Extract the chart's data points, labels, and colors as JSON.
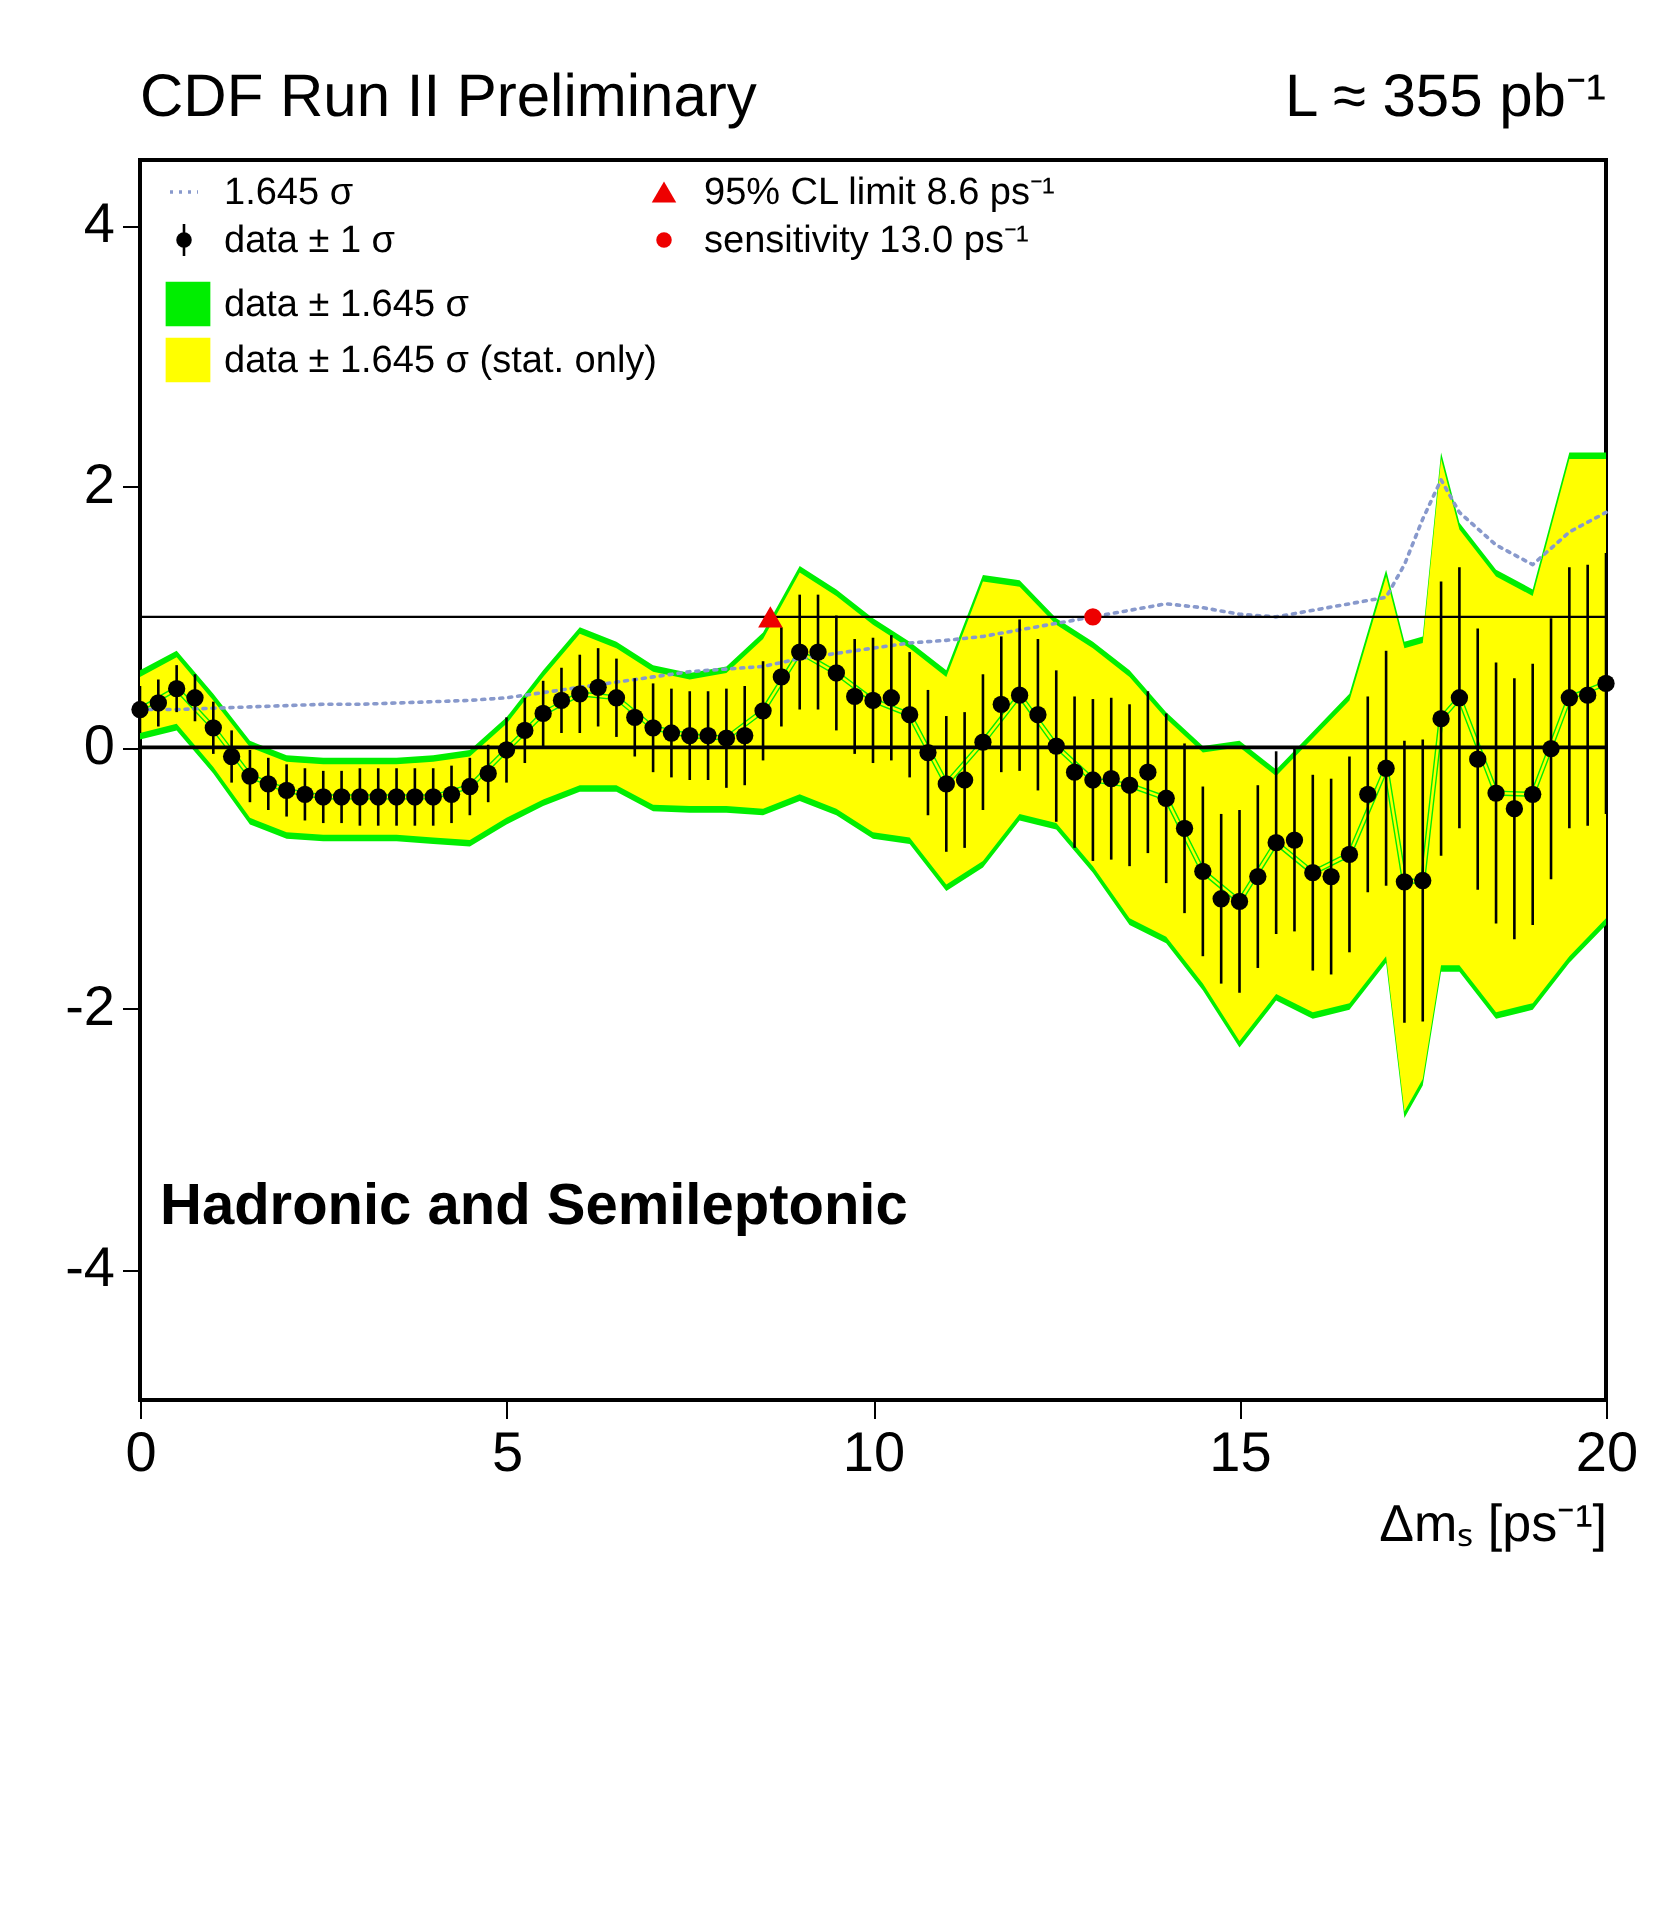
{
  "chart_data": {
    "type": "scatter",
    "title": "CDF Run II Preliminary",
    "subtitle": "L ≈ 355 pb⁻¹",
    "xlabel": "Δmₛ [ps⁻¹]",
    "annotations": [
      "Hadronic and Semileptonic"
    ],
    "xlim": [
      0,
      20
    ],
    "xticks": [
      0,
      5,
      10,
      15,
      20
    ],
    "ylim": [
      -5,
      4.5
    ],
    "yticks": [
      -4,
      -2,
      0,
      2,
      4
    ],
    "legend": "top left",
    "x": [
      0,
      0.25,
      0.5,
      0.75,
      1,
      1.25,
      1.5,
      1.75,
      2,
      2.25,
      2.5,
      2.75,
      3,
      3.25,
      3.5,
      3.75,
      4,
      4.25,
      4.5,
      4.75,
      5,
      5.25,
      5.5,
      5.75,
      6,
      6.25,
      6.5,
      6.75,
      7,
      7.25,
      7.5,
      7.75,
      8,
      8.25,
      8.5,
      8.75,
      9,
      9.25,
      9.5,
      9.75,
      10,
      10.25,
      10.5,
      10.75,
      11,
      11.25,
      11.5,
      11.75,
      12,
      12.25,
      12.5,
      12.75,
      13,
      13.25,
      13.5,
      13.75,
      14,
      14.25,
      14.5,
      14.75,
      15,
      15.25,
      15.5,
      15.75,
      16,
      16.25,
      16.5,
      16.75,
      17,
      17.25,
      17.5,
      17.75,
      18,
      18.25,
      18.5,
      18.75,
      19,
      19.25,
      19.5,
      19.75,
      20
    ],
    "ref_lines": [
      {
        "axis": "y",
        "value": 1,
        "color": "#000000"
      },
      {
        "axis": "y",
        "value": 0,
        "color": "#000000"
      }
    ],
    "series": [
      {
        "name": "data ± 1.645 σ",
        "type": "line",
        "color": "#00ee00",
        "values": [
          0.29,
          0.45,
          0.15,
          -0.22,
          -0.33,
          -0.38,
          -0.38,
          -0.38,
          -0.38,
          -0.3,
          -0.02,
          0.26,
          0.41,
          0.38,
          0.15,
          0.09,
          0.07,
          0.28,
          0.73,
          0.57,
          0.36,
          0.25,
          -0.28,
          0.04,
          0.4,
          0.01,
          -0.25,
          -0.29,
          -0.39,
          -0.95,
          -1.18,
          -0.73,
          -0.96,
          -0.82,
          -0.16,
          -1.03,
          -1.02,
          0.22,
          0.38,
          -0.35,
          -0.36,
          0.38,
          0.49
        ],
        "x": [
          0,
          0.5,
          1,
          1.5,
          2,
          2.5,
          3,
          3.5,
          4,
          4.5,
          5,
          5.5,
          6,
          6.5,
          7,
          7.5,
          8,
          8.5,
          9,
          9.5,
          10,
          10.5,
          11,
          11.5,
          12,
          12.5,
          13,
          13.5,
          14,
          14.5,
          15,
          15.5,
          16,
          16.5,
          17,
          17.25,
          17.5,
          17.75,
          18,
          18.5,
          19,
          19.5,
          20
        ],
        "lower": [
          0.06,
          0.13,
          -0.2,
          -0.59,
          -0.7,
          -0.72,
          -0.72,
          -0.72,
          -0.74,
          -0.76,
          -0.59,
          -0.45,
          -0.34,
          -0.34,
          -0.49,
          -0.5,
          -0.5,
          -0.52,
          -0.41,
          -0.52,
          -0.7,
          -0.74,
          -1.1,
          -0.92,
          -0.56,
          -0.63,
          -0.96,
          -1.36,
          -1.5,
          -1.86,
          -2.3,
          -1.94,
          -2.08,
          -2.01,
          -1.65,
          -2.84,
          -2.59,
          -1.72,
          -1.72,
          -2.08,
          -2.01,
          -1.65,
          -1.36
        ],
        "upper": [
          0.59,
          0.74,
          0.41,
          0.05,
          -0.06,
          -0.08,
          -0.08,
          -0.08,
          -0.06,
          -0.02,
          0.23,
          0.59,
          0.92,
          0.81,
          0.63,
          0.57,
          0.62,
          0.88,
          1.39,
          1.21,
          0.99,
          0.81,
          0.59,
          1.32,
          1.28,
          0.99,
          0.81,
          0.59,
          0.27,
          0.01,
          0.05,
          -0.17,
          0.12,
          0.41,
          1.36,
          0.81,
          0.85,
          2.26,
          1.72,
          1.36,
          1.21,
          2.26,
          2.26
        ]
      },
      {
        "name": "data ± 1.645 σ (stat. only)",
        "type": "line",
        "color": "#ffff00",
        "values": [
          0.29,
          0.45,
          0.15,
          -0.22,
          -0.33,
          -0.38,
          -0.38,
          -0.38,
          -0.38,
          -0.3,
          -0.02,
          0.26,
          0.41,
          0.38,
          0.15,
          0.09,
          0.07,
          0.28,
          0.73,
          0.57,
          0.36,
          0.25,
          -0.28,
          0.04,
          0.4,
          0.01,
          -0.25,
          -0.29,
          -0.39,
          -0.95,
          -1.18,
          -0.73,
          -0.96,
          -0.82,
          -0.16,
          -1.03,
          -1.02,
          0.22,
          0.38,
          -0.35,
          -0.36,
          0.38,
          0.49
        ],
        "x": [
          0,
          0.5,
          1,
          1.5,
          2,
          2.5,
          3,
          3.5,
          4,
          4.5,
          5,
          5.5,
          6,
          6.5,
          7,
          7.5,
          8,
          8.5,
          9,
          9.5,
          10,
          10.5,
          11,
          11.5,
          12,
          12.5,
          13,
          13.5,
          14,
          14.5,
          15,
          15.5,
          16,
          16.5,
          17,
          17.25,
          17.5,
          17.75,
          18,
          18.5,
          19,
          19.5,
          20
        ],
        "lower": [
          0.11,
          0.18,
          -0.15,
          -0.54,
          -0.65,
          -0.67,
          -0.67,
          -0.67,
          -0.69,
          -0.71,
          -0.54,
          -0.4,
          -0.29,
          -0.29,
          -0.44,
          -0.45,
          -0.45,
          -0.47,
          -0.36,
          -0.47,
          -0.65,
          -0.69,
          -1.05,
          -0.87,
          -0.51,
          -0.58,
          -0.91,
          -1.31,
          -1.45,
          -1.81,
          -2.25,
          -1.89,
          -2.03,
          -1.96,
          -1.6,
          -2.79,
          -2.54,
          -1.67,
          -1.67,
          -2.03,
          -1.96,
          -1.6,
          -1.31
        ],
        "upper": [
          0.54,
          0.69,
          0.36,
          0,
          -0.11,
          -0.13,
          -0.13,
          -0.13,
          -0.11,
          -0.07,
          0.18,
          0.54,
          0.87,
          0.76,
          0.58,
          0.52,
          0.57,
          0.83,
          1.34,
          1.16,
          0.94,
          0.76,
          0.54,
          1.27,
          1.23,
          0.94,
          0.76,
          0.54,
          0.22,
          -0.04,
          0,
          -0.22,
          0.07,
          0.36,
          1.31,
          0.76,
          0.8,
          2.21,
          1.67,
          1.31,
          1.16,
          2.21,
          2.21
        ]
      },
      {
        "name": "1.645 σ",
        "type": "line",
        "line_style": "dotted",
        "color": "#8899cc",
        "x": [
          0,
          0.5,
          1,
          1.5,
          2,
          2.5,
          3,
          3.5,
          4,
          4.5,
          5,
          5.5,
          6,
          6.5,
          7,
          7.5,
          8,
          8.5,
          9,
          9.5,
          10,
          10.5,
          11,
          11.5,
          12,
          12.5,
          13,
          13.5,
          14,
          14.5,
          15,
          15.5,
          16,
          16.5,
          17,
          17.25,
          17.5,
          17.75,
          18,
          18.5,
          19,
          19.5,
          20
        ],
        "values": [
          0.29,
          0.29,
          0.3,
          0.31,
          0.32,
          0.33,
          0.33,
          0.34,
          0.35,
          0.36,
          0.38,
          0.42,
          0.46,
          0.5,
          0.54,
          0.58,
          0.6,
          0.62,
          0.68,
          0.72,
          0.76,
          0.8,
          0.82,
          0.85,
          0.9,
          0.95,
          1,
          1.05,
          1.1,
          1.07,
          1.02,
          1,
          1.05,
          1.1,
          1.15,
          1.4,
          1.75,
          2.05,
          1.8,
          1.55,
          1.4,
          1.65,
          1.8
        ]
      },
      {
        "name": "data ± 1 σ",
        "marker": "circle",
        "color": "#000000",
        "values": [
          0.29,
          0.34,
          0.45,
          0.38,
          0.15,
          -0.07,
          -0.22,
          -0.28,
          -0.33,
          -0.36,
          -0.38,
          -0.38,
          -0.38,
          -0.38,
          -0.38,
          -0.38,
          -0.38,
          -0.36,
          -0.3,
          -0.2,
          -0.02,
          0.13,
          0.26,
          0.36,
          0.41,
          0.46,
          0.38,
          0.23,
          0.15,
          0.11,
          0.09,
          0.09,
          0.07,
          0.09,
          0.28,
          0.54,
          0.73,
          0.73,
          0.57,
          0.39,
          0.36,
          0.38,
          0.25,
          -0.04,
          -0.28,
          -0.25,
          0.04,
          0.33,
          0.4,
          0.25,
          0.01,
          -0.19,
          -0.25,
          -0.24,
          -0.29,
          -0.19,
          -0.39,
          -0.62,
          -0.95,
          -1.16,
          -1.18,
          -0.99,
          -0.73,
          -0.71,
          -0.96,
          -0.99,
          -0.82,
          -0.36,
          -0.16,
          -1.03,
          -1.02,
          0.22,
          0.38,
          -0.09,
          -0.35,
          -0.47,
          -0.36,
          -0.01,
          0.38,
          0.4,
          0.49
        ],
        "errors": [
          0.18,
          0.18,
          0.18,
          0.18,
          0.2,
          0.2,
          0.2,
          0.2,
          0.2,
          0.2,
          0.2,
          0.2,
          0.22,
          0.22,
          0.22,
          0.22,
          0.22,
          0.22,
          0.22,
          0.22,
          0.25,
          0.25,
          0.25,
          0.25,
          0.3,
          0.3,
          0.3,
          0.3,
          0.34,
          0.34,
          0.34,
          0.34,
          0.38,
          0.38,
          0.38,
          0.38,
          0.44,
          0.44,
          0.44,
          0.44,
          0.48,
          0.48,
          0.48,
          0.48,
          0.52,
          0.52,
          0.52,
          0.52,
          0.58,
          0.58,
          0.58,
          0.58,
          0.62,
          0.62,
          0.62,
          0.62,
          0.65,
          0.65,
          0.65,
          0.65,
          0.7,
          0.7,
          0.7,
          0.7,
          0.75,
          0.75,
          0.75,
          0.75,
          0.9,
          1.08,
          1.08,
          1.05,
          1,
          1,
          1,
          1,
          1,
          1,
          1,
          1,
          1
        ]
      },
      {
        "name": "95% CL limit 8.6 ps⁻¹",
        "type": "scatter",
        "marker": "triangle",
        "color": "#ee0000",
        "x": [
          8.6
        ],
        "values": [
          1
        ]
      },
      {
        "name": "sensitivity 13.0 ps⁻¹",
        "type": "scatter",
        "marker": "circle",
        "color": "#ee0000",
        "x": [
          13.0
        ],
        "values": [
          1
        ]
      }
    ]
  }
}
